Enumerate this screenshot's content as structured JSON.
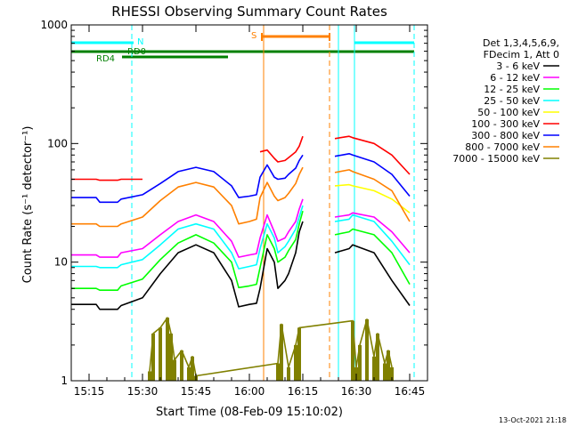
{
  "chart_data": {
    "type": "line",
    "title": "RHESSI Observing Summary Count Rates",
    "xlabel": "Start Time (08-Feb-09 15:10:02)",
    "ylabel": "Count Rate (s⁻¹ detector⁻¹)",
    "x_unit": "minutes since 15:10:02",
    "xlim": [
      0,
      100
    ],
    "ylim": [
      1,
      1000
    ],
    "y_scale": "log",
    "x_ticks": [
      {
        "pos": 5,
        "label": "15:15"
      },
      {
        "pos": 20,
        "label": "15:30"
      },
      {
        "pos": 35,
        "label": "15:45"
      },
      {
        "pos": 50,
        "label": "16:00"
      },
      {
        "pos": 65,
        "label": "16:15"
      },
      {
        "pos": 80,
        "label": "16:30"
      },
      {
        "pos": 95,
        "label": "16:45"
      }
    ],
    "y_ticks": [
      {
        "value": 1,
        "label": "1"
      },
      {
        "value": 10,
        "label": "10"
      },
      {
        "value": 100,
        "label": "100"
      },
      {
        "value": 1000,
        "label": "1000"
      }
    ],
    "legend_header": [
      "Det 1,3,4,5,6,9,",
      "FDecim 1, Att 0"
    ],
    "legend_position": "right",
    "series": [
      {
        "name": "3 - 6 keV",
        "color": "#000000",
        "x": [
          0,
          7,
          8,
          13,
          14,
          20,
          25,
          30,
          35,
          40,
          45,
          47,
          50,
          52,
          53,
          55,
          57,
          58,
          60,
          61,
          63,
          64,
          65,
          68,
          70,
          73,
          74,
          78,
          79,
          85,
          90,
          95
        ],
        "y": [
          4.4,
          4.4,
          4,
          4,
          4.3,
          5,
          8,
          12,
          14,
          12,
          7,
          4.2,
          4.4,
          4.5,
          6,
          13,
          10,
          6,
          7,
          8,
          12,
          18,
          22,
          null,
          null,
          null,
          12,
          13,
          14,
          12,
          7,
          4.3
        ]
      },
      {
        "name": "6 - 12 keV",
        "color": "#ff00ff",
        "x": [
          0,
          7,
          8,
          13,
          14,
          20,
          25,
          30,
          35,
          40,
          45,
          47,
          50,
          52,
          53,
          55,
          57,
          58,
          60,
          61,
          63,
          64,
          65,
          68,
          70,
          73,
          74,
          78,
          79,
          85,
          90,
          95
        ],
        "y": [
          11.5,
          11.5,
          11,
          11,
          12,
          13,
          17,
          22,
          25,
          22,
          15,
          11,
          11.5,
          11.8,
          16,
          25,
          18,
          15,
          16,
          18,
          22,
          28,
          34,
          null,
          null,
          null,
          24,
          25,
          26,
          24,
          18,
          12
        ]
      },
      {
        "name": "12 - 25 keV",
        "color": "#00ff00",
        "x": [
          0,
          7,
          8,
          13,
          14,
          20,
          25,
          30,
          35,
          40,
          45,
          47,
          50,
          52,
          53,
          55,
          57,
          58,
          60,
          61,
          63,
          64,
          65,
          68,
          70,
          73,
          74,
          78,
          79,
          85,
          90,
          95
        ],
        "y": [
          6,
          6,
          5.8,
          5.8,
          6.3,
          7.2,
          10.5,
          14.5,
          17,
          14.5,
          10,
          6.1,
          6.3,
          6.5,
          9,
          17,
          13,
          10,
          11,
          12.5,
          15.5,
          21,
          27,
          null,
          null,
          null,
          17,
          18,
          19,
          17,
          12,
          6.5
        ]
      },
      {
        "name": "25 - 50 keV",
        "color": "#00ffff",
        "x": [
          0,
          7,
          8,
          13,
          14,
          20,
          25,
          30,
          35,
          40,
          45,
          47,
          50,
          52,
          53,
          55,
          57,
          58,
          60,
          61,
          63,
          64,
          65,
          68,
          70,
          73,
          74,
          78,
          79,
          85,
          90,
          95
        ],
        "y": [
          9.2,
          9.2,
          9,
          9,
          9.5,
          10.5,
          14,
          19,
          21,
          19,
          12,
          8.8,
          9.2,
          9.5,
          13,
          21,
          16,
          12,
          13.5,
          15,
          19,
          24,
          30,
          null,
          null,
          null,
          22,
          23,
          25,
          22,
          15,
          9.5
        ]
      },
      {
        "name": "50 - 100 keV",
        "color": "#ffff00",
        "x": [
          0,
          7,
          8,
          13,
          14,
          20,
          25,
          30,
          35,
          40,
          45,
          47,
          50,
          52,
          53,
          55,
          57,
          58,
          60,
          61,
          63,
          64,
          65,
          68,
          70,
          73,
          74,
          78,
          79,
          85,
          90,
          95
        ],
        "y": [
          null,
          null,
          null,
          null,
          null,
          null,
          null,
          null,
          null,
          null,
          null,
          null,
          null,
          null,
          null,
          null,
          null,
          null,
          null,
          null,
          null,
          null,
          null,
          null,
          null,
          null,
          44,
          45,
          44,
          40,
          34,
          26
        ]
      },
      {
        "name": "100 - 300 keV",
        "color": "#ff0000",
        "x": [
          0,
          7,
          8,
          13,
          14,
          20,
          25,
          30,
          35,
          40,
          45,
          47,
          50,
          52,
          53,
          55,
          57,
          58,
          60,
          61,
          63,
          64,
          65,
          68,
          70,
          73,
          74,
          78,
          79,
          85,
          90,
          95
        ],
        "y": [
          50,
          50,
          49,
          49,
          50,
          50,
          null,
          null,
          null,
          null,
          null,
          null,
          null,
          null,
          85,
          88,
          75,
          70,
          72,
          76,
          85,
          95,
          115,
          null,
          null,
          null,
          110,
          115,
          112,
          100,
          80,
          55
        ]
      },
      {
        "name": "300 - 800 keV",
        "color": "#0000ff",
        "x": [
          0,
          7,
          8,
          13,
          14,
          20,
          25,
          30,
          35,
          40,
          45,
          47,
          50,
          52,
          53,
          55,
          57,
          58,
          60,
          61,
          63,
          64,
          65,
          68,
          70,
          73,
          74,
          78,
          79,
          85,
          90,
          95
        ],
        "y": [
          35,
          35,
          32,
          32,
          34,
          37,
          46,
          58,
          63,
          58,
          44,
          35,
          36,
          37,
          52,
          66,
          52,
          50,
          51,
          55,
          62,
          72,
          80,
          null,
          null,
          null,
          78,
          82,
          80,
          70,
          55,
          36
        ]
      },
      {
        "name": "800 - 7000 keV",
        "color": "#ff8000",
        "x": [
          0,
          7,
          8,
          13,
          14,
          20,
          25,
          30,
          35,
          40,
          45,
          47,
          50,
          52,
          53,
          55,
          57,
          58,
          60,
          61,
          63,
          64,
          65,
          68,
          70,
          73,
          74,
          78,
          79,
          85,
          90,
          95
        ],
        "y": [
          21,
          21,
          20,
          20,
          21,
          24,
          33,
          43,
          47,
          43,
          30,
          21,
          22,
          23,
          35,
          47,
          36,
          33,
          35,
          38,
          46,
          55,
          63,
          null,
          null,
          null,
          57,
          60,
          58,
          50,
          40,
          22
        ]
      },
      {
        "name": "7000 - 15000 keV",
        "color": "#808000",
        "x": [
          22,
          23,
          25,
          27,
          28,
          29,
          31,
          33,
          34,
          35,
          58,
          59,
          61,
          63,
          64,
          79,
          80,
          81,
          83,
          85,
          86,
          88,
          89,
          90
        ],
        "y": [
          1.2,
          2.5,
          2.8,
          3.4,
          2.5,
          1.5,
          1.8,
          1.3,
          1.6,
          1.1,
          1.4,
          3,
          1.3,
          2,
          2.8,
          3.2,
          1.3,
          2,
          3.3,
          1.6,
          2.5,
          1.4,
          1.8,
          1.3
        ]
      }
    ],
    "annotations": [
      {
        "label": "N",
        "color": "#00ffff",
        "x_range": [
          0,
          16
        ]
      },
      {
        "label": "RD0",
        "color": "#008000",
        "x_range": [
          14,
          40
        ]
      },
      {
        "label": "RD4",
        "color": "#008000",
        "x_range": [
          0,
          14
        ]
      },
      {
        "label": "S",
        "color": "#ff8000",
        "x_range": [
          54,
          70
        ]
      }
    ],
    "footer_date": "13-Oct-2021 21:18"
  }
}
